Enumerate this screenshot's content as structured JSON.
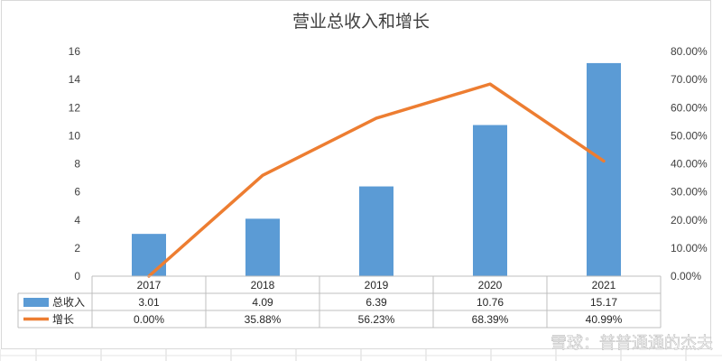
{
  "chart_data": {
    "type": "bar+line",
    "title": "营业总收入和增长",
    "categories": [
      "2017",
      "2018",
      "2019",
      "2020",
      "2021"
    ],
    "series": [
      {
        "name": "总收入",
        "type": "bar",
        "axis": "left",
        "color": "#5b9bd5",
        "values": [
          3.01,
          4.09,
          6.39,
          10.76,
          15.17
        ],
        "labels": [
          "3.01",
          "4.09",
          "6.39",
          "10.76",
          "15.17"
        ]
      },
      {
        "name": "增长",
        "type": "line",
        "axis": "right",
        "color": "#ed7d31",
        "values": [
          0.0,
          35.88,
          56.23,
          68.39,
          40.99
        ],
        "labels": [
          "0.00%",
          "35.88%",
          "56.23%",
          "68.39%",
          "40.99%"
        ]
      }
    ],
    "y_left": {
      "range": [
        0,
        16
      ],
      "ticks": [
        "0",
        "2",
        "4",
        "6",
        "8",
        "10",
        "12",
        "14",
        "16"
      ]
    },
    "y_right": {
      "range": [
        0,
        80
      ],
      "ticks": [
        "0.00%",
        "10.00%",
        "20.00%",
        "30.00%",
        "40.00%",
        "50.00%",
        "60.00%",
        "70.00%",
        "80.00%"
      ]
    },
    "data_table": true,
    "grid": false
  },
  "watermark": "雪球：普普通通的杰夫"
}
